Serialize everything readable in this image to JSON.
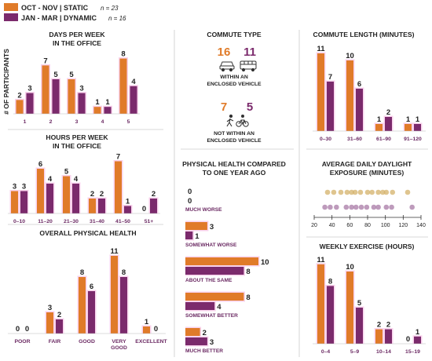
{
  "colors": {
    "static": "#e07b29",
    "dynamic": "#7b2a6c",
    "glow": "#f9d2ec"
  },
  "legend": {
    "static_label": "OCT - NOV | STATIC",
    "static_n": "n = 23",
    "dynamic_label": "JAN - MAR | DYNAMIC",
    "dynamic_n": "n = 16"
  },
  "y_axis_label": "# OF PARTICIPANTS",
  "commute_type": {
    "title": "COMMUTE TYPE",
    "enclosed": {
      "static": 16,
      "dynamic": 11,
      "label_lines": [
        "WITHIN AN",
        "ENCLOSED VEHICLE"
      ],
      "icons": [
        "car-icon",
        "bus-icon"
      ]
    },
    "not_enclosed": {
      "static": 7,
      "dynamic": 5,
      "label_lines": [
        "NOT WITHIN AN",
        "ENCLOSED VEHICLE"
      ],
      "icons": [
        "walk-icon",
        "bike-icon"
      ]
    }
  },
  "chart_data": [
    {
      "id": "days",
      "type": "bar",
      "title_lines": [
        "DAYS PER WEEK",
        "IN THE OFFICE"
      ],
      "ylabel": "# OF PARTICIPANTS",
      "categories": [
        "1",
        "2",
        "3",
        "4",
        "5"
      ],
      "series": [
        {
          "name": "OCT - NOV | STATIC",
          "values": [
            2,
            7,
            5,
            1,
            8
          ]
        },
        {
          "name": "JAN - MAR | DYNAMIC",
          "values": [
            3,
            5,
            3,
            1,
            4
          ]
        }
      ]
    },
    {
      "id": "hours",
      "type": "bar",
      "title_lines": [
        "HOURS PER WEEK",
        "IN THE OFFICE"
      ],
      "categories": [
        "0–10",
        "11–20",
        "21–30",
        "31–40",
        "41–50",
        "51+"
      ],
      "series": [
        {
          "name": "OCT - NOV | STATIC",
          "values": [
            3,
            6,
            5,
            2,
            7,
            0
          ]
        },
        {
          "name": "JAN - MAR | DYNAMIC",
          "values": [
            3,
            4,
            4,
            2,
            1,
            2
          ]
        }
      ]
    },
    {
      "id": "health",
      "type": "bar",
      "title_lines": [
        "OVERALL PHYSICAL HEALTH"
      ],
      "categories": [
        "POOR",
        "FAIR",
        "GOOD",
        "VERY GOOD",
        "EXCELLENT"
      ],
      "series": [
        {
          "name": "OCT - NOV | STATIC",
          "values": [
            0,
            3,
            8,
            11,
            1
          ]
        },
        {
          "name": "JAN - MAR | DYNAMIC",
          "values": [
            0,
            2,
            6,
            8,
            0
          ]
        }
      ]
    },
    {
      "id": "length",
      "type": "bar",
      "title_lines": [
        "COMMUTE LENGTH (MINUTES)"
      ],
      "categories": [
        "0–30",
        "31–60",
        "61–90",
        "91–120"
      ],
      "series": [
        {
          "name": "OCT - NOV | STATIC",
          "values": [
            11,
            10,
            1,
            1
          ]
        },
        {
          "name": "JAN - MAR | DYNAMIC",
          "values": [
            7,
            6,
            2,
            1
          ]
        }
      ]
    },
    {
      "id": "compare",
      "type": "bar",
      "orientation": "horizontal",
      "title_lines": [
        "PHYSICAL HEALTH COMPARED",
        "TO ONE YEAR AGO"
      ],
      "categories": [
        "MUCH WORSE",
        "SOMEWHAT WORSE",
        "ABOUT THE SAME",
        "SOMEWHAT BETTER",
        "MUCH BETTER"
      ],
      "series": [
        {
          "name": "OCT - NOV | STATIC",
          "values": [
            0,
            3,
            10,
            8,
            2
          ]
        },
        {
          "name": "JAN - MAR | DYNAMIC",
          "values": [
            0,
            1,
            8,
            4,
            3
          ]
        }
      ]
    },
    {
      "id": "daylight",
      "type": "scatter",
      "title_lines": [
        "AVERAGE DAILY DAYLIGHT",
        "EXPOSURE (MINUTES)"
      ],
      "xlim": [
        20,
        140
      ],
      "ticks": [
        20,
        40,
        60,
        80,
        100,
        120,
        140
      ],
      "series": [
        {
          "name": "OCT - NOV | STATIC",
          "x": [
            35,
            42,
            50,
            57,
            62,
            66,
            72,
            80,
            85,
            92,
            97,
            101,
            108,
            125
          ]
        },
        {
          "name": "JAN - MAR | DYNAMIC",
          "x": [
            32,
            38,
            45,
            56,
            62,
            67,
            73,
            79,
            87,
            92,
            101,
            107,
            130
          ]
        }
      ]
    },
    {
      "id": "exercise",
      "type": "bar",
      "title_lines": [
        "WEEKLY EXERCISE (HOURS)"
      ],
      "categories": [
        "0–4",
        "5–9",
        "10–14",
        "15–19"
      ],
      "series": [
        {
          "name": "OCT - NOV | STATIC",
          "values": [
            11,
            10,
            2,
            0
          ]
        },
        {
          "name": "JAN - MAR | DYNAMIC",
          "values": [
            8,
            5,
            2,
            1
          ]
        }
      ]
    }
  ]
}
